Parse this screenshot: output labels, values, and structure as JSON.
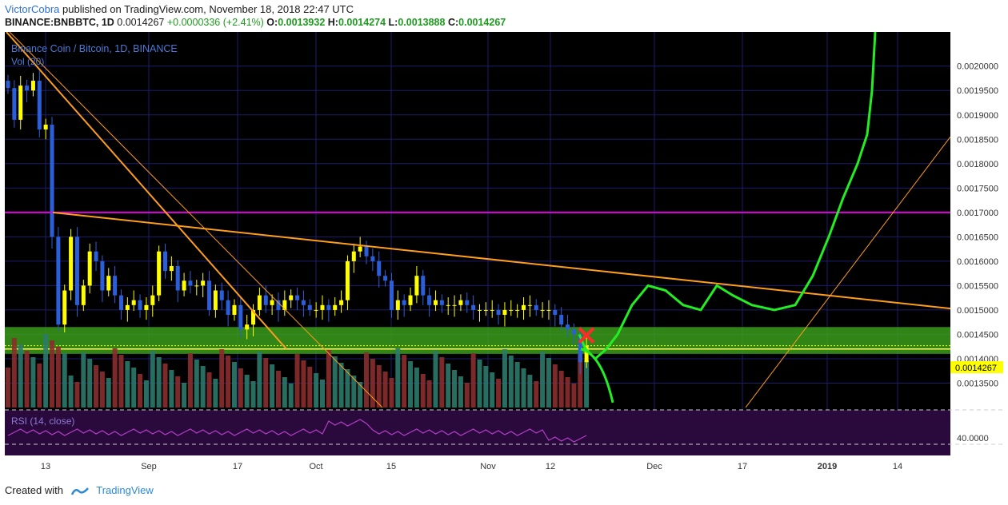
{
  "header": {
    "author": "VictorCobra",
    "published_text": "published on TradingView.com, November 18, 2018 22:47 UTC",
    "symbol": "BINANCE:BNBBTC, 1D",
    "last": "0.0014267",
    "change": "+0.0000336 (+2.41%)",
    "o_label": "O:",
    "o_value": "0.0013932",
    "h_label": "H:",
    "h_value": "0.0014274",
    "l_label": "L:",
    "l_value": "0.0013888",
    "c_label": "C:",
    "c_value": "0.0014267"
  },
  "footer": {
    "created_with": "Created with",
    "brand": "TradingView"
  },
  "chart_data": {
    "type": "candlestick",
    "title": "Binance Coin / Bitcoin, 1D, BINANCE",
    "volume_label": "Vol (20)",
    "rsi_label": "RSI (14, close)",
    "rsi_level_label": "40.0000",
    "last_price_label": "0.0014267",
    "y_ticks": [
      "0.0020000",
      "0.0019500",
      "0.0019000",
      "0.0018500",
      "0.0018000",
      "0.0017500",
      "0.0017000",
      "0.0016500",
      "0.0016000",
      "0.0015500",
      "0.0015000",
      "0.0014500",
      "0.0014000",
      "0.0013500"
    ],
    "ylim": [
      0.0013,
      0.00207
    ],
    "x_ticks": [
      "13",
      "Sep",
      "17",
      "Oct",
      "15",
      "Nov",
      "12",
      "Dec",
      "17",
      "2019",
      "14"
    ],
    "resistance_level": 0.0017,
    "support_zone": [
      0.00141,
      0.001465
    ],
    "colors": {
      "background": "#000000",
      "grid": "#1c1d6b",
      "bull": "#ffff00",
      "bear": "#2b5fd9",
      "resistance": "#e000e0",
      "trend": "#ff9d1c",
      "projection": "#22ee22",
      "zone": "#3a9c1a",
      "rsi_band": "#2a0a3c",
      "rsi_line": "#b43cc8",
      "vol_up": "#2c7a6a",
      "vol_down": "#8c2e2e",
      "marker": "#ff2a2a"
    }
  }
}
